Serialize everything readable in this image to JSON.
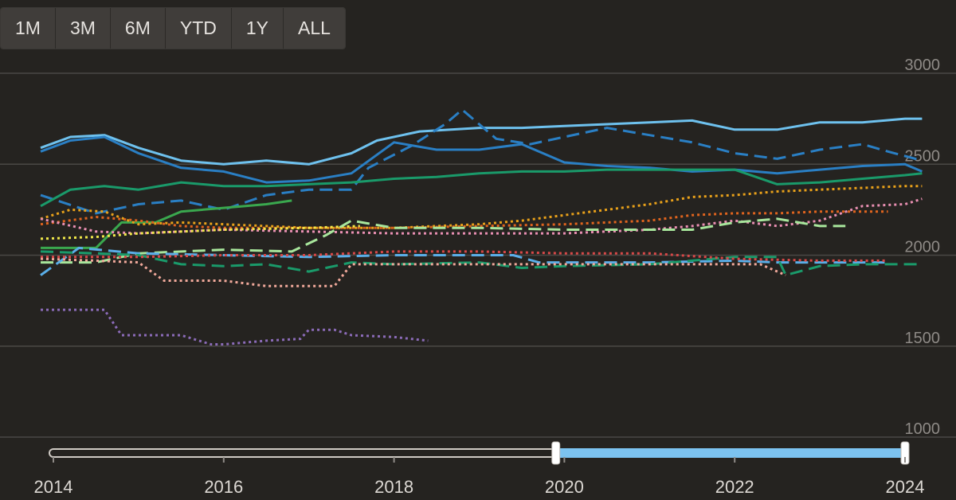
{
  "range_selector": {
    "buttons": [
      "1M",
      "3M",
      "6M",
      "YTD",
      "1Y",
      "ALL"
    ]
  },
  "colors": {
    "background": "#252320",
    "grid": "#4a4845",
    "axis_text": "#8e8a86",
    "navigator_selected": "#7cc3f0"
  },
  "navigator": {
    "selected_range": [
      "2019.9",
      "2024.0"
    ]
  },
  "chart_data": {
    "type": "line",
    "title": "",
    "xlabel": "",
    "ylabel": "",
    "ylim": [
      900,
      3050
    ],
    "xlim": [
      2013.85,
      2025.2
    ],
    "yticks": [
      1000,
      1500,
      2000,
      2500,
      3000
    ],
    "yticklabels": [
      "1000",
      "1500",
      "2000",
      "2500",
      "3000"
    ],
    "xticks": [
      2014,
      2016,
      2018,
      2020,
      2022,
      2024
    ],
    "xticklabels": [
      "2014",
      "2016",
      "2018",
      "2020",
      "2022",
      "2024"
    ],
    "grid": true,
    "legend": "none",
    "series": [
      {
        "color": "#6ec1ee",
        "dash": "solid",
        "x": [
          2013.85,
          2014.2,
          2014.6,
          2015.0,
          2015.5,
          2016.0,
          2016.5,
          2017.0,
          2017.5,
          2017.8,
          2018.3,
          2019.0,
          2019.5,
          2020.0,
          2020.5,
          2021.0,
          2021.5,
          2022.0,
          2022.5,
          2023.0,
          2023.5,
          2024.0,
          2024.2
        ],
        "y": [
          2590,
          2650,
          2660,
          2590,
          2520,
          2500,
          2520,
          2500,
          2560,
          2630,
          2680,
          2700,
          2700,
          2710,
          2720,
          2730,
          2740,
          2690,
          2690,
          2730,
          2730,
          2750,
          2750
        ]
      },
      {
        "color": "#2a7fc4",
        "dash": "solid",
        "x": [
          2013.85,
          2014.2,
          2014.6,
          2015.0,
          2015.5,
          2016.0,
          2016.5,
          2017.0,
          2017.5,
          2018.0,
          2018.5,
          2019.0,
          2019.5,
          2020.0,
          2020.5,
          2021.0,
          2021.5,
          2022.0,
          2022.5,
          2023.0,
          2023.5,
          2024.0,
          2024.2
        ],
        "y": [
          2570,
          2630,
          2650,
          2560,
          2480,
          2460,
          2400,
          2410,
          2450,
          2620,
          2580,
          2580,
          2610,
          2510,
          2490,
          2480,
          2460,
          2470,
          2450,
          2470,
          2490,
          2500,
          2460
        ]
      },
      {
        "color": "#2a7fc4",
        "dash": "long-dash",
        "x": [
          2013.85,
          2014.5,
          2015.0,
          2015.5,
          2016.0,
          2016.5,
          2017.0,
          2017.5,
          2017.7,
          2018.2,
          2018.6,
          2018.8,
          2019.2,
          2019.6,
          2020.0,
          2020.5,
          2021.0,
          2021.5,
          2022.0,
          2022.5,
          2023.0,
          2023.5,
          2023.8,
          2024.2
        ],
        "y": [
          2330,
          2230,
          2280,
          2300,
          2250,
          2330,
          2360,
          2360,
          2480,
          2600,
          2720,
          2800,
          2640,
          2610,
          2650,
          2700,
          2660,
          2620,
          2560,
          2530,
          2580,
          2610,
          2570,
          2520
        ]
      },
      {
        "color": "#1a9a6a",
        "dash": "solid",
        "x": [
          2013.85,
          2014.2,
          2014.6,
          2015.0,
          2015.5,
          2016.0,
          2016.5,
          2017.0,
          2017.5,
          2018.0,
          2018.5,
          2019.0,
          2019.5,
          2020.0,
          2020.5,
          2021.0,
          2021.5,
          2022.0,
          2022.5,
          2023.0,
          2023.5,
          2024.0,
          2024.2
        ],
        "y": [
          2270,
          2360,
          2380,
          2360,
          2400,
          2380,
          2380,
          2390,
          2400,
          2420,
          2430,
          2450,
          2460,
          2460,
          2470,
          2470,
          2470,
          2470,
          2390,
          2400,
          2420,
          2440,
          2450
        ]
      },
      {
        "color": "#3aa84e",
        "dash": "solid",
        "x": [
          2013.85,
          2014.5,
          2014.8,
          2015.2,
          2015.5,
          2016.0,
          2016.5,
          2016.8
        ],
        "y": [
          2040,
          2040,
          2180,
          2180,
          2240,
          2260,
          2280,
          2300
        ]
      },
      {
        "color": "#e9a11a",
        "dash": "dotted",
        "x": [
          2013.85,
          2014.2,
          2014.6,
          2015.0,
          2015.5,
          2016.0,
          2016.5,
          2017.0,
          2017.5,
          2018.0,
          2018.5,
          2019.0,
          2019.5,
          2020.0,
          2020.5,
          2021.0,
          2021.5,
          2022.0,
          2022.5,
          2023.0,
          2023.5,
          2024.0,
          2024.2
        ],
        "y": [
          2200,
          2250,
          2240,
          2170,
          2180,
          2170,
          2160,
          2150,
          2150,
          2150,
          2160,
          2170,
          2190,
          2220,
          2250,
          2280,
          2320,
          2330,
          2350,
          2360,
          2370,
          2380,
          2380
        ]
      },
      {
        "color": "#e0641e",
        "dash": "dotted",
        "x": [
          2013.85,
          2014.5,
          2015.0,
          2015.5,
          2016.0,
          2017.0,
          2018.0,
          2019.0,
          2020.0,
          2021.0,
          2021.5,
          2022.0,
          2022.5,
          2023.0,
          2023.5,
          2023.8
        ],
        "y": [
          2170,
          2210,
          2190,
          2160,
          2150,
          2150,
          2150,
          2160,
          2170,
          2190,
          2220,
          2230,
          2230,
          2240,
          2240,
          2240
        ]
      },
      {
        "color": "#e98fb2",
        "dash": "dotted",
        "x": [
          2013.85,
          2014.5,
          2015.0,
          2016.0,
          2017.0,
          2018.0,
          2019.0,
          2020.0,
          2021.0,
          2021.5,
          2022.0,
          2022.5,
          2023.0,
          2023.5,
          2024.0,
          2024.2
        ],
        "y": [
          2200,
          2130,
          2120,
          2140,
          2130,
          2120,
          2120,
          2120,
          2140,
          2160,
          2190,
          2160,
          2190,
          2270,
          2280,
          2310
        ]
      },
      {
        "color": "#f0e84a",
        "dash": "dotted",
        "x": [
          2013.85,
          2014.5,
          2015.0,
          2016.0,
          2017.0,
          2017.6
        ],
        "y": [
          2090,
          2100,
          2120,
          2140,
          2150,
          2160
        ]
      },
      {
        "color": "#a8e69c",
        "dash": "long-dash",
        "x": [
          2013.85,
          2014.5,
          2015.0,
          2016.0,
          2016.8,
          2017.2,
          2017.5,
          2018.0,
          2019.0,
          2020.0,
          2021.0,
          2021.5,
          2022.0,
          2022.5,
          2023.0,
          2023.3
        ],
        "y": [
          1960,
          1960,
          2010,
          2030,
          2020,
          2110,
          2190,
          2150,
          2150,
          2140,
          2140,
          2140,
          2180,
          2200,
          2160,
          2160
        ]
      },
      {
        "color": "#5aaee8",
        "dash": "long-dash",
        "x": [
          2013.85,
          2014.3,
          2015.0,
          2016.0,
          2017.0,
          2018.0,
          2019.0,
          2019.4,
          2019.7,
          2020.0,
          2021.0,
          2022.0,
          2022.5,
          2023.0,
          2023.8
        ],
        "y": [
          1890,
          2040,
          2010,
          2000,
          1990,
          2000,
          2000,
          2000,
          1960,
          1960,
          1960,
          1970,
          1960,
          1960,
          1960
        ]
      },
      {
        "color": "#1a9a6a",
        "dash": "long-dash",
        "x": [
          2013.85,
          2014.5,
          2015.0,
          2015.5,
          2016.0,
          2016.5,
          2017.0,
          2017.5,
          2018.0,
          2019.0,
          2019.5,
          2020.0,
          2021.0,
          2022.0,
          2022.5,
          2022.6,
          2023.0,
          2023.5,
          2024.0,
          2024.2
        ],
        "y": [
          2020,
          2010,
          2000,
          1950,
          1940,
          1950,
          1910,
          1960,
          1950,
          1960,
          1930,
          1940,
          1950,
          1990,
          1990,
          1890,
          1940,
          1950,
          1950,
          1950
        ]
      },
      {
        "color": "#d94848",
        "dash": "dotted",
        "x": [
          2013.85,
          2015.0,
          2016.0,
          2017.0,
          2018.0,
          2019.0,
          2020.0,
          2021.0,
          2022.0,
          2023.0,
          2023.8
        ],
        "y": [
          1990,
          1990,
          2000,
          2000,
          2020,
          2020,
          2010,
          2010,
          1980,
          1970,
          1970
        ]
      },
      {
        "color": "#f0a89a",
        "dash": "dotted",
        "x": [
          2013.85,
          2014.5,
          2015.0,
          2015.3,
          2016.0,
          2016.5,
          2017.0,
          2017.3,
          2017.5,
          2018.0,
          2019.0,
          2020.0,
          2021.0,
          2022.0,
          2022.3,
          2022.6
        ],
        "y": [
          1980,
          1970,
          1960,
          1860,
          1860,
          1830,
          1830,
          1830,
          1950,
          1950,
          1950,
          1950,
          1950,
          1950,
          1950,
          1890
        ]
      },
      {
        "color": "#8b6bb8",
        "dash": "dotted",
        "x": [
          2013.85,
          2014.6,
          2014.8,
          2015.5,
          2015.85,
          2016.0,
          2016.5,
          2016.9,
          2017.0,
          2017.3,
          2017.5,
          2018.0,
          2018.4
        ],
        "y": [
          1700,
          1700,
          1560,
          1560,
          1510,
          1510,
          1530,
          1540,
          1590,
          1590,
          1560,
          1550,
          1530
        ]
      }
    ]
  }
}
